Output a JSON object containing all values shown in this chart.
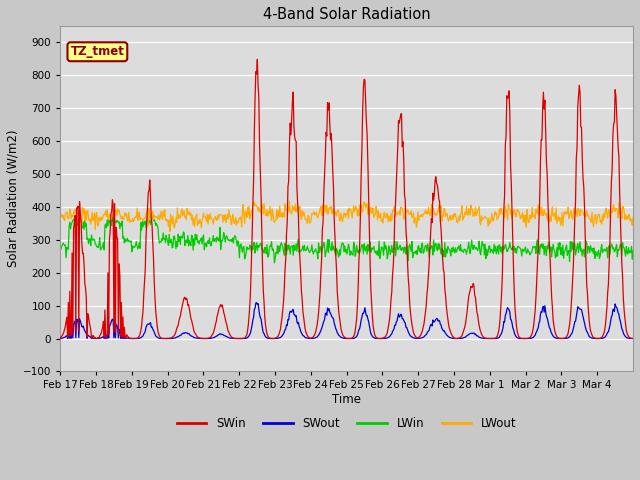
{
  "title": "4-Band Solar Radiation",
  "xlabel": "Time",
  "ylabel": "Solar Radiation (W/m2)",
  "ylim": [
    -100,
    950
  ],
  "yticks": [
    -100,
    0,
    100,
    200,
    300,
    400,
    500,
    600,
    700,
    800,
    900
  ],
  "tz_label": "TZ_tmet",
  "line_colors": {
    "SWin": "#dd0000",
    "SWout": "#0000dd",
    "LWin": "#00cc00",
    "LWout": "#ffaa00"
  },
  "legend_entries": [
    "SWin",
    "SWout",
    "LWin",
    "LWout"
  ],
  "fig_facecolor": "#c8c8c8",
  "plot_facecolor": "#dcdcdc",
  "n_days": 16,
  "pts_per_day": 48,
  "tick_labels": [
    "Feb 17",
    "Feb 18",
    "Feb 19",
    "Feb 20",
    "Feb 21",
    "Feb 22",
    "Feb 23",
    "Feb 24",
    "Feb 25",
    "Feb 26",
    "Feb 27",
    "Feb 28",
    "Mar 1",
    "Mar 2",
    "Mar 3",
    "Mar 4"
  ]
}
